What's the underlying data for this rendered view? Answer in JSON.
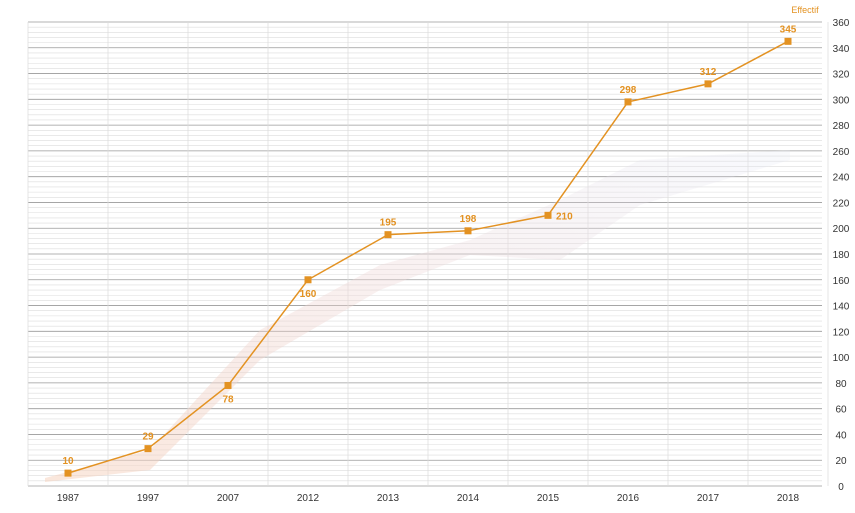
{
  "chart_data": {
    "type": "line",
    "ylabel": "Effectif",
    "ylim": [
      0,
      360
    ],
    "ytick_step": 20,
    "categories": [
      "1987",
      "1997",
      "2007",
      "2012",
      "2013",
      "2014",
      "2015",
      "2016",
      "2017",
      "2018"
    ],
    "series": [
      {
        "values": [
          10,
          29,
          78,
          160,
          195,
          198,
          210,
          298,
          312,
          345
        ]
      }
    ],
    "grid": true,
    "colors": {
      "series": "#e39222",
      "label": "#e39222",
      "axis_title": "#e39222",
      "grid_major": "#9a9a9a",
      "grid_minor": "#dcdcdc"
    }
  }
}
